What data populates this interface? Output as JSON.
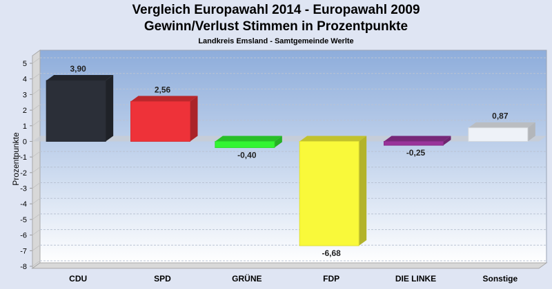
{
  "chart_data": {
    "type": "bar",
    "title": "Vergleich Europawahl 2014 - Europawahl 2009",
    "subtitle": "Gewinn/Verlust Stimmen in Prozentpunkte",
    "caption": "Landkreis Emsland - Samtgemeinde Werlte",
    "xlabel": "",
    "ylabel": "Prozentpunkte",
    "ylim": [
      -8,
      5
    ],
    "yticks": [
      5,
      4,
      3,
      2,
      1,
      0,
      -1,
      -2,
      -3,
      -4,
      -5,
      -6,
      -7,
      -8
    ],
    "grid": true,
    "categories": [
      "CDU",
      "SPD",
      "GRÜNE",
      "FDP",
      "DIE LINKE",
      "Sonstige"
    ],
    "values": [
      3.9,
      2.56,
      -0.4,
      -6.68,
      -0.25,
      0.87
    ],
    "value_labels": [
      "3,90",
      "2,56",
      "-0,40",
      "-6,68",
      "-0,25",
      "0,87"
    ],
    "colors": [
      "#2b2f38",
      "#ee3239",
      "#33f533",
      "#f9f93a",
      "#99339a",
      "#eef2f8"
    ]
  }
}
